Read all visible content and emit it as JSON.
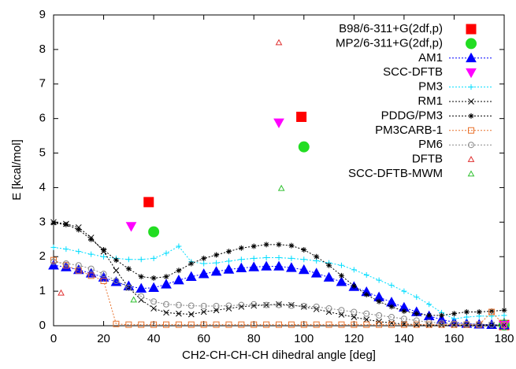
{
  "chart_data": {
    "type": "line",
    "xlabel": "CH2-CH-CH-CH dihedral angle [deg]",
    "ylabel": "E [kcal/mol]",
    "xlim": [
      0,
      180
    ],
    "xticks": [
      0,
      20,
      40,
      60,
      80,
      100,
      120,
      140,
      160,
      180
    ],
    "ylim": [
      0,
      9
    ],
    "yticks": [
      0,
      1,
      2,
      3,
      4,
      5,
      6,
      7,
      8,
      9
    ],
    "legend": "upper right",
    "series": [
      {
        "name": "B98/6-311+G(2df,p)",
        "color": "#ff0000",
        "marker": "square",
        "line": false,
        "x": [
          38,
          99,
          180
        ],
        "values": [
          3.58,
          6.05,
          0.02
        ]
      },
      {
        "name": "MP2/6-311+G(2df,p)",
        "color": "#22dd22",
        "marker": "circle",
        "line": false,
        "x": [
          40,
          100,
          180
        ],
        "values": [
          2.72,
          5.18,
          0.02
        ]
      },
      {
        "name": "AM1",
        "color": "#0000ff",
        "marker": "triangle-up",
        "line": true,
        "x": [
          0,
          5,
          10,
          15,
          20,
          25,
          30,
          35,
          40,
          45,
          50,
          55,
          60,
          65,
          70,
          75,
          80,
          85,
          90,
          95,
          100,
          105,
          110,
          115,
          120,
          125,
          130,
          135,
          140,
          145,
          150,
          155,
          160,
          165,
          170,
          175,
          180
        ],
        "values": [
          1.75,
          1.7,
          1.62,
          1.52,
          1.4,
          1.27,
          1.15,
          1.08,
          1.1,
          1.2,
          1.32,
          1.42,
          1.5,
          1.57,
          1.63,
          1.67,
          1.7,
          1.72,
          1.72,
          1.68,
          1.62,
          1.52,
          1.4,
          1.27,
          1.13,
          0.98,
          0.83,
          0.68,
          0.53,
          0.4,
          0.28,
          0.18,
          0.1,
          0.06,
          0.04,
          0.03,
          0.02
        ]
      },
      {
        "name": "SCC-DFTB",
        "color": "#ff00ff",
        "marker": "triangle-down",
        "line": false,
        "x": [
          31,
          90,
          180
        ],
        "values": [
          2.88,
          5.88,
          0.02
        ]
      },
      {
        "name": "PM3",
        "color": "#00ddff",
        "marker": "plus",
        "line": true,
        "x": [
          0,
          5,
          10,
          15,
          20,
          25,
          30,
          35,
          40,
          45,
          50,
          55,
          60,
          65,
          70,
          75,
          80,
          85,
          90,
          95,
          100,
          105,
          110,
          115,
          120,
          125,
          130,
          135,
          140,
          145,
          150,
          155,
          160,
          165,
          170,
          175,
          180
        ],
        "values": [
          2.27,
          2.22,
          2.15,
          2.07,
          2.0,
          1.95,
          1.92,
          1.92,
          1.95,
          2.1,
          2.3,
          1.85,
          1.8,
          1.82,
          1.87,
          1.92,
          1.95,
          1.97,
          1.97,
          1.95,
          1.92,
          1.88,
          1.82,
          1.75,
          1.62,
          1.47,
          1.32,
          1.17,
          1.0,
          0.83,
          0.62,
          0.38,
          0.2,
          0.25,
          0.28,
          0.28,
          0.3
        ]
      },
      {
        "name": "RM1",
        "color": "#000000",
        "marker": "x",
        "line": true,
        "x": [
          0,
          5,
          10,
          15,
          20,
          25,
          30,
          35,
          40,
          45,
          50,
          55,
          60,
          65,
          70,
          75,
          80,
          85,
          90,
          95,
          100,
          105,
          110,
          115,
          120,
          125,
          130,
          135,
          140,
          145,
          150,
          155,
          160,
          165,
          170,
          175,
          180
        ],
        "values": [
          3.0,
          2.95,
          2.85,
          2.55,
          2.15,
          1.6,
          1.1,
          0.75,
          0.5,
          0.38,
          0.35,
          0.33,
          0.4,
          0.45,
          0.5,
          0.55,
          0.58,
          0.6,
          0.62,
          0.6,
          0.55,
          0.48,
          0.4,
          0.32,
          0.25,
          0.18,
          0.12,
          0.08,
          0.05,
          0.03,
          0.02,
          0.02,
          0.02,
          0.02,
          0.02,
          0.02,
          0.02
        ]
      },
      {
        "name": "PDDG/PM3",
        "color": "#000000",
        "marker": "star",
        "line": true,
        "x": [
          0,
          5,
          10,
          15,
          20,
          25,
          30,
          35,
          40,
          45,
          50,
          55,
          60,
          65,
          70,
          75,
          80,
          85,
          90,
          95,
          100,
          105,
          110,
          115,
          120,
          125,
          130,
          135,
          140,
          145,
          150,
          155,
          160,
          165,
          170,
          175,
          180
        ],
        "values": [
          2.97,
          2.93,
          2.78,
          2.5,
          2.2,
          1.9,
          1.65,
          1.42,
          1.38,
          1.42,
          1.6,
          1.8,
          1.95,
          2.05,
          2.15,
          2.25,
          2.3,
          2.35,
          2.35,
          2.32,
          2.2,
          2.0,
          1.75,
          1.45,
          1.15,
          0.9,
          0.7,
          0.55,
          0.42,
          0.35,
          0.3,
          0.3,
          0.35,
          0.4,
          0.4,
          0.42,
          0.45
        ]
      },
      {
        "name": "PM3CARB-1",
        "color": "#e8702a",
        "marker": "open-square",
        "line": true,
        "x": [
          0,
          5,
          10,
          15,
          20,
          25,
          30,
          35,
          40,
          45,
          50,
          55,
          60,
          65,
          70,
          75,
          80,
          85,
          90,
          95,
          100,
          105,
          110,
          115,
          120,
          125,
          130,
          135,
          140,
          145,
          150,
          155,
          160,
          165,
          170,
          175,
          180
        ],
        "values": [
          1.9,
          1.75,
          1.6,
          1.45,
          1.3,
          0.05,
          0.03,
          0.03,
          0.03,
          0.03,
          0.03,
          0.03,
          0.03,
          0.03,
          0.03,
          0.03,
          0.03,
          0.03,
          0.03,
          0.03,
          0.03,
          0.03,
          0.03,
          0.03,
          0.03,
          0.03,
          0.03,
          0.03,
          0.03,
          0.03,
          0.03,
          0.03,
          0.03,
          0.03,
          0.03,
          0.4,
          0.02
        ]
      },
      {
        "name": "PM6",
        "color": "#888888",
        "marker": "open-circle",
        "line": true,
        "x": [
          0,
          5,
          10,
          15,
          20,
          25,
          30,
          35,
          40,
          45,
          50,
          55,
          60,
          65,
          70,
          75,
          80,
          85,
          90,
          95,
          100,
          105,
          110,
          115,
          120,
          125,
          130,
          135,
          140,
          145,
          150,
          155,
          160,
          165,
          170,
          175,
          180
        ],
        "values": [
          1.85,
          1.8,
          1.75,
          1.65,
          1.5,
          1.3,
          1.1,
          0.85,
          0.7,
          0.62,
          0.6,
          0.58,
          0.57,
          0.57,
          0.58,
          0.6,
          0.62,
          0.6,
          0.6,
          0.58,
          0.57,
          0.55,
          0.5,
          0.45,
          0.4,
          0.35,
          0.3,
          0.25,
          0.2,
          0.15,
          0.1,
          0.08,
          0.06,
          0.05,
          0.04,
          0.03,
          0.02
        ]
      },
      {
        "name": "DFTB",
        "color": "#e03030",
        "marker": "open-triangle",
        "line": false,
        "x": [
          3,
          90
        ],
        "values": [
          0.95,
          8.2
        ]
      },
      {
        "name": "SCC-DFTB-MWM",
        "color": "#30c030",
        "marker": "open-triangle",
        "line": false,
        "x": [
          32,
          91
        ],
        "values": [
          0.75,
          3.98
        ]
      }
    ]
  }
}
